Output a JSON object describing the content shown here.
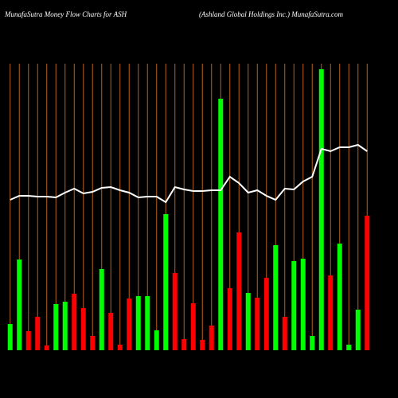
{
  "chart_data": {
    "type": "bar",
    "title": "MunafaSutra  Money Flow  Charts for ASH",
    "subtitle": "(Ashland Global Holdings Inc.) MunafaSutra.com",
    "ylim": [
      0,
      360
    ],
    "grid": true,
    "grid_color": "#b8601a",
    "values": [
      33,
      114,
      24,
      42,
      6,
      58,
      61,
      71,
      53,
      18,
      102,
      47,
      7,
      65,
      68,
      68,
      25,
      171,
      97,
      14,
      59,
      13,
      31,
      316,
      78,
      148,
      72,
      66,
      91,
      132,
      42,
      112,
      115,
      18,
      353,
      94,
      134,
      7,
      51,
      169
    ],
    "colors": [
      "#00ff00",
      "#00ff00",
      "#ff0000",
      "#ff0000",
      "#ff0000",
      "#00ff00",
      "#00ff00",
      "#ff0000",
      "#ff0000",
      "#ff0000",
      "#00ff00",
      "#ff0000",
      "#ff0000",
      "#ff0000",
      "#00ff00",
      "#00ff00",
      "#00ff00",
      "#00ff00",
      "#ff0000",
      "#ff0000",
      "#ff0000",
      "#ff0000",
      "#ff0000",
      "#00ff00",
      "#ff0000",
      "#ff0000",
      "#00ff00",
      "#ff0000",
      "#ff0000",
      "#00ff00",
      "#ff0000",
      "#00ff00",
      "#00ff00",
      "#00ff00",
      "#00ff00",
      "#ff0000",
      "#00ff00",
      "#00ff00",
      "#00ff00",
      "#ff0000"
    ],
    "line": {
      "color": "#ffffff",
      "values": [
        189,
        194,
        194,
        193,
        193,
        192,
        198,
        203,
        197,
        199,
        204,
        205,
        201,
        198,
        192,
        193,
        193,
        186,
        205,
        202,
        200,
        200,
        201,
        201,
        218,
        210,
        198,
        201,
        194,
        189,
        203,
        202,
        212,
        218,
        253,
        250,
        255,
        255,
        258,
        250
      ]
    }
  }
}
